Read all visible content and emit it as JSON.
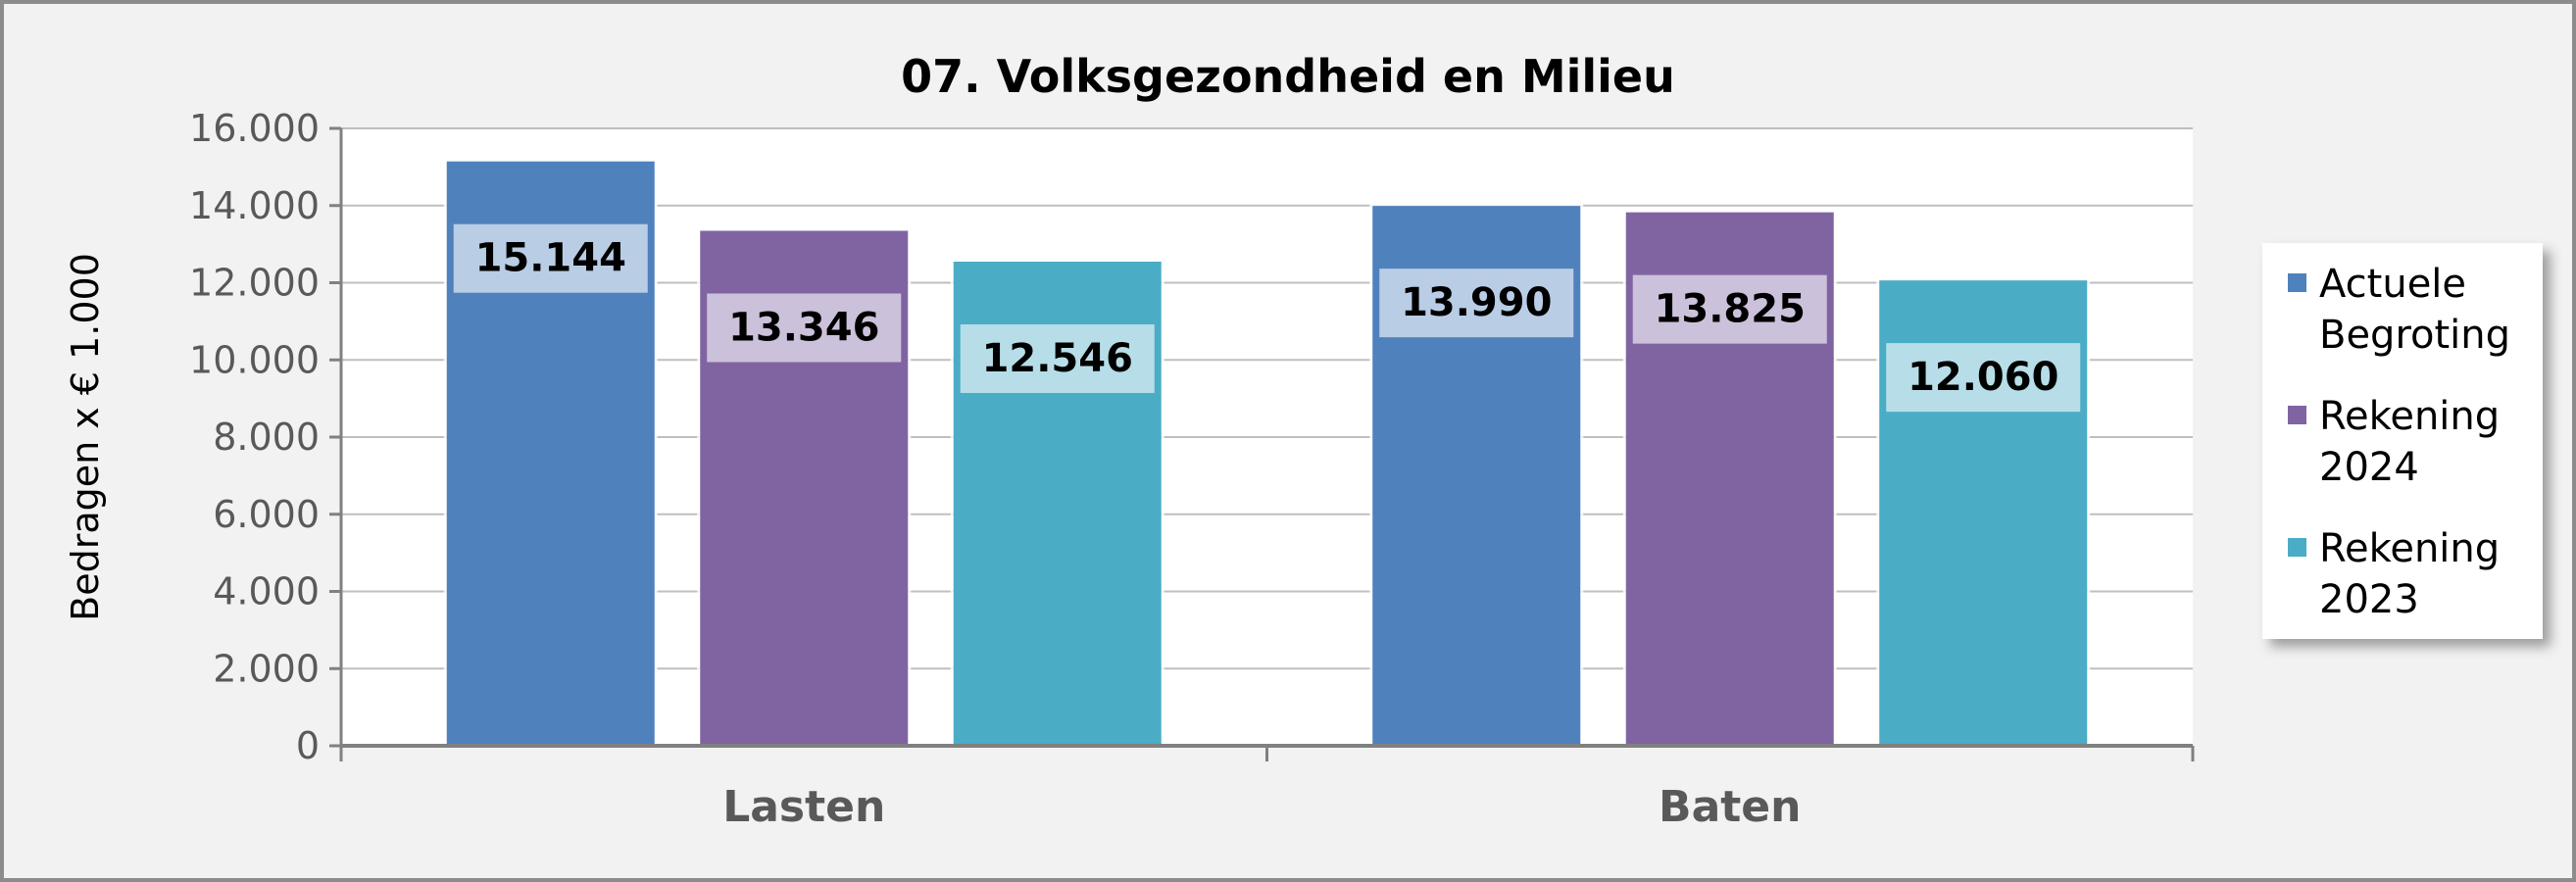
{
  "chart_data": {
    "type": "bar",
    "title": "07. Volksgezondheid en Milieu",
    "xlabel": "",
    "ylabel": "Bedragen x € 1.000",
    "categories": [
      "Lasten",
      "Baten"
    ],
    "series": [
      {
        "name": "Actuele Begroting",
        "values": [
          15144,
          13990
        ],
        "labels": [
          "15.144",
          "13.990"
        ],
        "color": "#4f81bd",
        "label_bg": "#b9cde5"
      },
      {
        "name": "Rekening 2024",
        "values": [
          13346,
          13825
        ],
        "labels": [
          "13.346",
          "13.825"
        ],
        "color": "#8064a2",
        "label_bg": "#ccc1da"
      },
      {
        "name": "Rekening 2023",
        "values": [
          12546,
          12060
        ],
        "labels": [
          "12.546",
          "12.060"
        ],
        "color": "#4bacc6",
        "label_bg": "#b7dee8"
      }
    ],
    "legend_lines": [
      [
        "Actuele",
        "Begroting"
      ],
      [
        "Rekening",
        "2024"
      ],
      [
        "Rekening",
        "2023"
      ]
    ],
    "ylim": [
      0,
      16000
    ],
    "yticks": [
      0,
      2000,
      4000,
      6000,
      8000,
      10000,
      12000,
      14000,
      16000
    ],
    "ytick_labels": [
      "0",
      "2.000",
      "4.000",
      "6.000",
      "8.000",
      "10.000",
      "12.000",
      "14.000",
      "16.000"
    ],
    "grid": true,
    "legend_position": "right"
  }
}
